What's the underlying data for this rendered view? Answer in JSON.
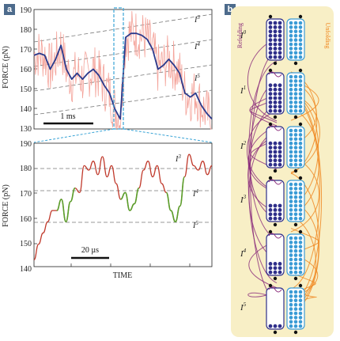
{
  "panels": [
    {
      "label": "a"
    },
    {
      "label": "b"
    }
  ],
  "top_plot": {
    "ylabel": "FORCE (pN)",
    "yticks": [
      130,
      140,
      150,
      160,
      170,
      180,
      190
    ],
    "scale_bar": "1 ms",
    "level_labels": [
      "I",
      "3",
      "I",
      "4",
      "I",
      "5"
    ]
  },
  "bottom_plot": {
    "ylabel": "FORCE (pN)",
    "xlabel": "TIME",
    "yticks": [
      140,
      150,
      160,
      170,
      180,
      190
    ],
    "scale_bar": "20 µs",
    "level_labels": [
      "I",
      "3",
      "I",
      "4",
      "I",
      "5"
    ]
  },
  "right_panel": {
    "refolding": "Refolding",
    "unfolding": "Unfolding",
    "states": [
      {
        "base": "I",
        "sup": "0"
      },
      {
        "base": "I",
        "sup": "1"
      },
      {
        "base": "I",
        "sup": "2"
      },
      {
        "base": "I",
        "sup": "3"
      },
      {
        "base": "I",
        "sup": "4"
      },
      {
        "base": "I",
        "sup": "5"
      }
    ]
  },
  "colors": {
    "raw_trace": "#f4a39a",
    "smooth_trace": "#2b3a8c",
    "fit_trace": "#c0392b",
    "highlight": "#5aa02c",
    "dashed_box": "#3aa4d6",
    "panel_bg": "#f8efc6",
    "refolding": "#8a2b7a",
    "unfolding": "#f08a24",
    "dark_domain": "#2f2f8a",
    "light_domain": "#3a9bd5"
  },
  "chart_data": [
    {
      "type": "line",
      "title": "",
      "xlabel": "",
      "ylabel": "FORCE (pN)",
      "ylim": [
        130,
        190
      ],
      "series": [
        {
          "values": [
            167,
            168,
            167,
            160,
            165,
            172,
            160,
            155,
            158,
            155,
            158,
            160,
            157,
            152,
            148,
            140,
            135,
            176,
            178,
            178,
            177,
            175,
            170,
            160,
            162,
            165,
            162,
            158,
            148,
            146,
            148,
            142,
            138,
            135
          ]
        }
      ]
    },
    {
      "type": "line",
      "title": "",
      "xlabel": "TIME",
      "ylabel": "FORCE (pN)",
      "ylim": [
        135,
        190
      ],
      "series": [
        {
          "values": [
            138,
            145,
            150,
            155,
            160,
            160,
            165,
            155,
            164,
            170,
            168,
            180,
            178,
            182,
            176,
            184,
            175,
            180,
            172,
            165,
            168,
            160,
            163,
            170,
            178,
            182,
            175,
            180,
            172,
            168,
            160,
            155,
            162,
            175,
            185,
            180,
            178,
            182,
            176,
            180
          ]
        }
      ]
    }
  ]
}
